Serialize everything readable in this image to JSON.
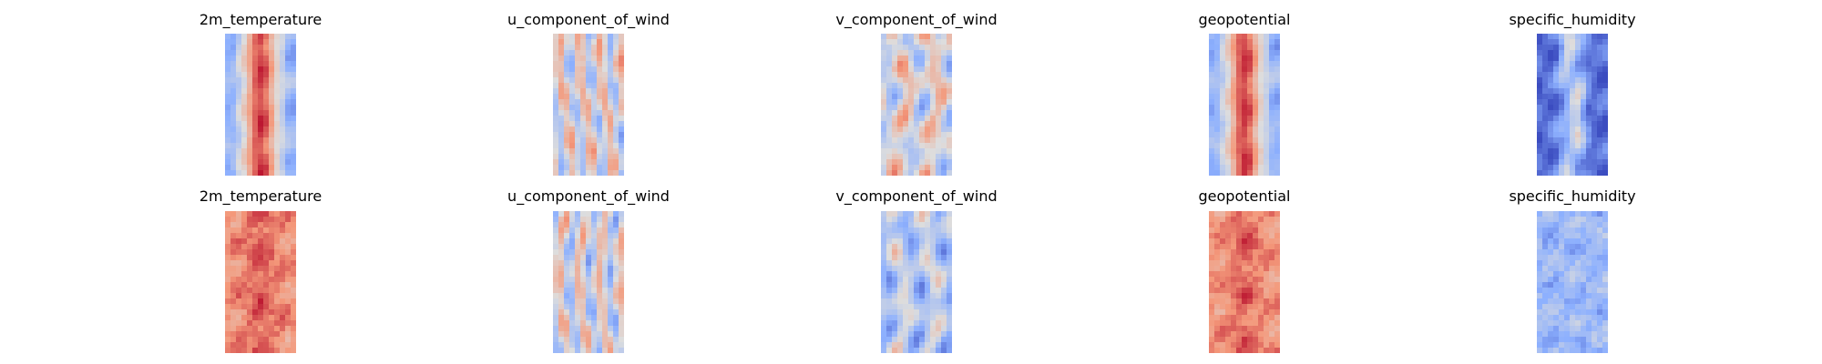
{
  "chart_data": {
    "type": "heatmap",
    "colormap": "coolwarm",
    "colors": {
      "cold": "#3b4cc0",
      "neutral": "#dddddd",
      "warm": "#b40426"
    },
    "axes": "off",
    "rows": [
      {
        "panels": [
          {
            "title": "2m_temperature",
            "pattern": "warm-core-center",
            "mean_level": 0.72
          },
          {
            "title": "u_component_of_wind",
            "pattern": "mixed-streaks",
            "mean_level": 0.5
          },
          {
            "title": "v_component_of_wind",
            "pattern": "mixed-eddies",
            "mean_level": 0.5
          },
          {
            "title": "geopotential",
            "pattern": "warm-core-center",
            "mean_level": 0.7
          },
          {
            "title": "specific_humidity",
            "pattern": "cold-with-warm-center",
            "mean_level": 0.25
          }
        ]
      },
      {
        "panels": [
          {
            "title": "2m_temperature",
            "pattern": "warm-noisy",
            "mean_level": 0.75
          },
          {
            "title": "u_component_of_wind",
            "pattern": "mixed-streaks",
            "mean_level": 0.48
          },
          {
            "title": "v_component_of_wind",
            "pattern": "cool-eddies",
            "mean_level": 0.38
          },
          {
            "title": "geopotential",
            "pattern": "warm-noisy",
            "mean_level": 0.74
          },
          {
            "title": "specific_humidity",
            "pattern": "cool-noisy",
            "mean_level": 0.3
          }
        ]
      }
    ]
  }
}
